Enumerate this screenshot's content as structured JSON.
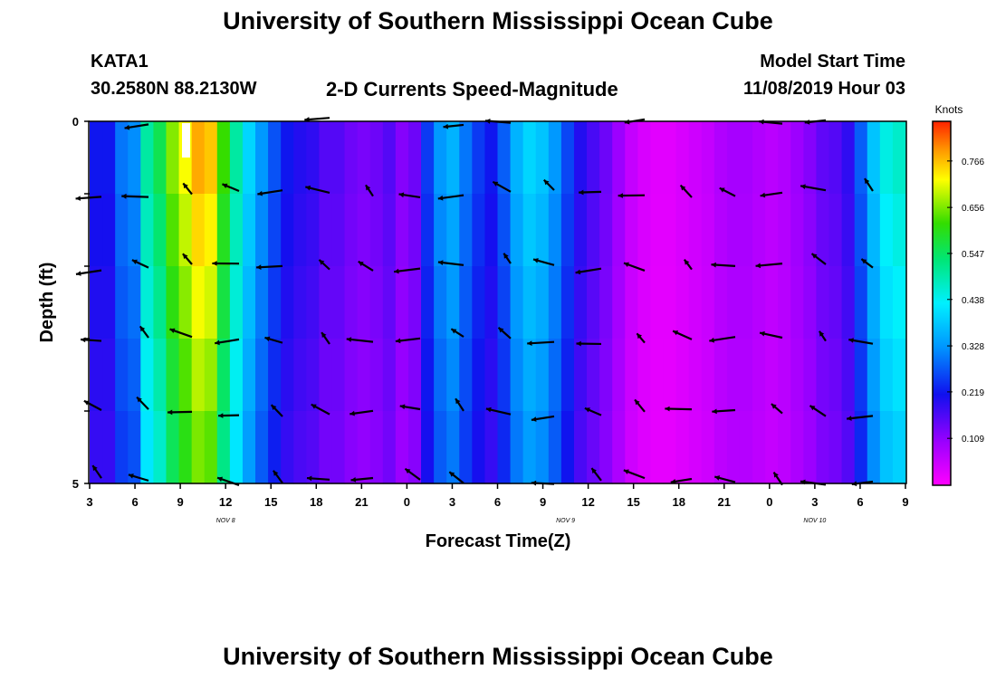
{
  "header": {
    "title": "University of Southern Mississippi Ocean Cube",
    "station": "KATA1",
    "coords": "30.2580N 88.2130W",
    "subtitle": "2-D Currents Speed-Magnitude",
    "model_label": "Model Start Time",
    "model_time": "11/08/2019 Hour 03"
  },
  "footer": {
    "title": "University of Southern Mississippi Ocean Cube"
  },
  "colors": {
    "arrow": "#000000",
    "frame": "#000000"
  },
  "chart_data": {
    "type": "heatmap",
    "title": "2-D Currents Speed-Magnitude",
    "xlabel": "Forecast Time(Z)",
    "ylabel": "Depth (ft)",
    "units": "Knots",
    "x_ticks": [
      "3",
      "6",
      "9",
      "12",
      "15",
      "18",
      "21",
      "0",
      "3",
      "6",
      "9",
      "12",
      "15",
      "18",
      "21",
      "0",
      "3",
      "6",
      "9"
    ],
    "date_labels": [
      {
        "label": "NOV 8",
        "at_tick": 3
      },
      {
        "label": "NOV 9",
        "at_tick": 10.5
      },
      {
        "label": "NOV 10",
        "at_tick": 16
      }
    ],
    "y_ticks": [
      "0",
      "5"
    ],
    "ylim": [
      0,
      5
    ],
    "colorbar": {
      "ticks": [
        "0.766",
        "0.656",
        "0.547",
        "0.438",
        "0.328",
        "0.219",
        "0.109"
      ],
      "tick_values": [
        0.766,
        0.656,
        0.547,
        0.438,
        0.328,
        0.219,
        0.109
      ],
      "range": [
        0.0,
        0.86
      ]
    },
    "speed_profile_knots": [
      0.22,
      0.22,
      0.3,
      0.32,
      0.5,
      0.56,
      0.66,
      0.72,
      0.78,
      0.76,
      0.62,
      0.5,
      0.4,
      0.33,
      0.27,
      0.22,
      0.2,
      0.19,
      0.16,
      0.16,
      0.14,
      0.13,
      0.14,
      0.16,
      0.12,
      0.14,
      0.25,
      0.33,
      0.36,
      0.3,
      0.25,
      0.22,
      0.28,
      0.36,
      0.4,
      0.38,
      0.33,
      0.26,
      0.2,
      0.17,
      0.14,
      0.1,
      0.06,
      0.04,
      0.03,
      0.03,
      0.04,
      0.05,
      0.06,
      0.08,
      0.09,
      0.09,
      0.08,
      0.07,
      0.08,
      0.1,
      0.12,
      0.15,
      0.16,
      0.19,
      0.28,
      0.38,
      0.45,
      0.47
    ]
  }
}
